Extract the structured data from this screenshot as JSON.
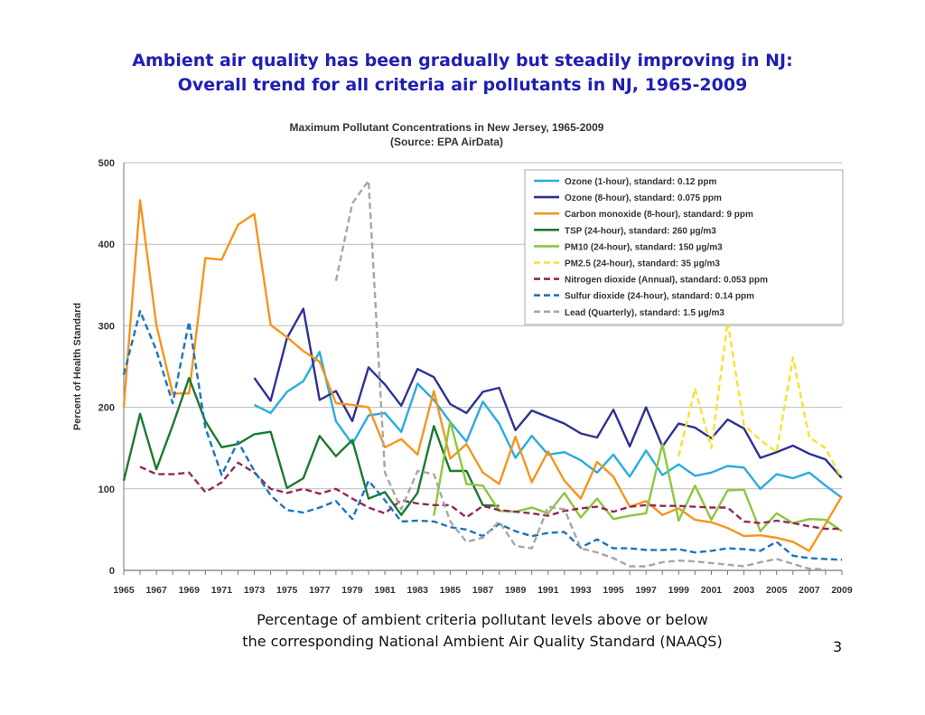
{
  "slide": {
    "title_line1": "Ambient air quality has been gradually but steadily improving in NJ:",
    "title_line2": "Overall trend for all criteria air pollutants in NJ, 1965-2009",
    "caption_line1": "Percentage of ambient criteria pollutant levels above or below",
    "caption_line2": "the corresponding National Ambient Air Quality Standard (NAAQS)",
    "page_number": "3"
  },
  "chart_data": {
    "type": "line",
    "title": "Maximum Pollutant Concentrations in New Jersey, 1965-2009",
    "subtitle": "(Source: EPA AirData)",
    "ylabel": "Percent of Health Standard",
    "xlabel": "",
    "xlim": [
      1965,
      2009
    ],
    "ylim": [
      0,
      500
    ],
    "yticks": [
      0,
      100,
      200,
      300,
      400,
      500
    ],
    "xticks": [
      1965,
      1967,
      1969,
      1971,
      1973,
      1975,
      1977,
      1979,
      1981,
      1983,
      1985,
      1987,
      1989,
      1991,
      1993,
      1995,
      1997,
      1999,
      2001,
      2003,
      2005,
      2007,
      2009
    ],
    "grid": "horizontal",
    "legend_position": "top-right",
    "series": [
      {
        "name": "Ozone (1-hour), standard: 0.12 ppm",
        "color": "#29abe2",
        "dash": "solid",
        "x": [
          1973,
          1974,
          1975,
          1976,
          1977,
          1978,
          1979,
          1980,
          1981,
          1982,
          1983,
          1984,
          1985,
          1986,
          1987,
          1988,
          1989,
          1990,
          1991,
          1992,
          1993,
          1994,
          1995,
          1996,
          1997,
          1998,
          1999,
          2000,
          2001,
          2002,
          2003,
          2004,
          2005,
          2006,
          2007,
          2008,
          2009
        ],
        "y": [
          203,
          193,
          219,
          232,
          268,
          183,
          155,
          190,
          193,
          170,
          229,
          209,
          182,
          158,
          207,
          180,
          138,
          165,
          142,
          145,
          135,
          120,
          142,
          115,
          147,
          117,
          130,
          116,
          120,
          128,
          126,
          100,
          118,
          113,
          120,
          104,
          89
        ]
      },
      {
        "name": "Ozone (8-hour), standard: 0.075 ppm",
        "color": "#2e3192",
        "dash": "solid",
        "x": [
          1973,
          1974,
          1975,
          1976,
          1977,
          1978,
          1979,
          1980,
          1981,
          1982,
          1983,
          1984,
          1985,
          1986,
          1987,
          1988,
          1989,
          1990,
          1991,
          1992,
          1993,
          1994,
          1995,
          1996,
          1997,
          1998,
          1999,
          2000,
          2001,
          2002,
          2003,
          2004,
          2005,
          2006,
          2007,
          2008,
          2009
        ],
        "y": [
          236,
          208,
          285,
          321,
          209,
          220,
          183,
          249,
          228,
          202,
          247,
          237,
          204,
          193,
          219,
          224,
          172,
          196,
          188,
          180,
          168,
          163,
          197,
          152,
          200,
          152,
          180,
          175,
          162,
          185,
          174,
          138,
          145,
          153,
          143,
          136,
          113
        ]
      },
      {
        "name": "Carbon monoxide (8-hour), standard: 9 ppm",
        "color": "#f7941d",
        "dash": "solid",
        "x": [
          1965,
          1966,
          1967,
          1968,
          1969,
          1970,
          1971,
          1972,
          1973,
          1974,
          1975,
          1976,
          1977,
          1978,
          1979,
          1980,
          1981,
          1982,
          1983,
          1984,
          1985,
          1986,
          1987,
          1988,
          1989,
          1990,
          1991,
          1992,
          1993,
          1994,
          1995,
          1996,
          1997,
          1998,
          1999,
          2000,
          2001,
          2002,
          2003,
          2004,
          2005,
          2006,
          2007,
          2008,
          2009
        ],
        "y": [
          200,
          454,
          301,
          217,
          217,
          383,
          381,
          424,
          437,
          301,
          286,
          269,
          256,
          205,
          203,
          200,
          151,
          161,
          142,
          220,
          137,
          155,
          120,
          106,
          164,
          108,
          146,
          110,
          88,
          133,
          115,
          78,
          85,
          68,
          76,
          62,
          59,
          52,
          42,
          43,
          40,
          35,
          24,
          57,
          91
        ]
      },
      {
        "name": "TSP (24-hour), standard: 260 µg/m3",
        "color": "#1a7a2e",
        "dash": "solid",
        "x": [
          1965,
          1966,
          1967,
          1968,
          1969,
          1970,
          1971,
          1972,
          1973,
          1974,
          1975,
          1976,
          1977,
          1978,
          1979,
          1980,
          1981,
          1982,
          1983,
          1984,
          1985,
          1986,
          1987,
          1988
        ],
        "y": [
          110,
          192,
          124,
          178,
          236,
          183,
          151,
          155,
          167,
          170,
          101,
          113,
          165,
          140,
          160,
          88,
          96,
          68,
          95,
          177,
          122,
          122,
          80,
          79
        ]
      },
      {
        "name": "PM10 (24-hour), standard: 150 µg/m3",
        "color": "#8dc63f",
        "dash": "solid",
        "x": [
          1984,
          1985,
          1986,
          1987,
          1988,
          1989,
          1990,
          1991,
          1992,
          1993,
          1994,
          1995,
          1996,
          1997,
          1998,
          1999,
          2000,
          2001,
          2002,
          2003,
          2004,
          2005,
          2006,
          2007,
          2008,
          2009
        ],
        "y": [
          67,
          183,
          106,
          104,
          73,
          72,
          77,
          70,
          95,
          65,
          88,
          63,
          67,
          70,
          155,
          61,
          104,
          62,
          98,
          99,
          48,
          70,
          58,
          63,
          62,
          48
        ]
      },
      {
        "name": "PM2.5 (24-hour), standard: 35 µg/m3",
        "color": "#f9e030",
        "dash": "dashed",
        "x": [
          1999,
          2000,
          2001,
          2002,
          2003,
          2004,
          2005,
          2006,
          2007,
          2008,
          2009
        ],
        "y": [
          140,
          223,
          150,
          305,
          178,
          160,
          145,
          261,
          163,
          150,
          112
        ]
      },
      {
        "name": "Nitrogen dioxide (Annual), standard: 0.053 ppm",
        "color": "#93275a",
        "dash": "dashed",
        "x": [
          1966,
          1967,
          1968,
          1969,
          1970,
          1971,
          1972,
          1973,
          1974,
          1975,
          1976,
          1977,
          1978,
          1979,
          1980,
          1981,
          1982,
          1983,
          1984,
          1985,
          1986,
          1987,
          1988,
          1989,
          1990,
          1991,
          1992,
          1993,
          1994,
          1995,
          1996,
          1997,
          1998,
          1999,
          2000,
          2001,
          2002,
          2003,
          2004,
          2005,
          2006,
          2007,
          2008,
          2009
        ],
        "y": [
          127,
          118,
          118,
          120,
          96,
          108,
          132,
          120,
          100,
          95,
          100,
          94,
          100,
          88,
          77,
          70,
          86,
          82,
          80,
          80,
          65,
          79,
          74,
          72,
          70,
          67,
          73,
          76,
          78,
          72,
          78,
          80,
          79,
          79,
          78,
          77,
          77,
          60,
          58,
          61,
          58,
          54,
          51,
          51
        ]
      },
      {
        "name": "Sulfur dioxide (24-hour), standard: 0.14 ppm",
        "color": "#1b75bb",
        "dash": "dashed",
        "x": [
          1965,
          1966,
          1967,
          1968,
          1969,
          1970,
          1971,
          1972,
          1973,
          1974,
          1975,
          1976,
          1977,
          1978,
          1979,
          1980,
          1981,
          1982,
          1983,
          1984,
          1985,
          1986,
          1987,
          1988,
          1989,
          1990,
          1991,
          1992,
          1993,
          1994,
          1995,
          1996,
          1997,
          1998,
          1999,
          2000,
          2001,
          2002,
          2003,
          2004,
          2005,
          2006,
          2007,
          2008,
          2009
        ],
        "y": [
          240,
          318,
          270,
          205,
          305,
          175,
          117,
          158,
          122,
          92,
          74,
          71,
          77,
          85,
          63,
          110,
          86,
          60,
          61,
          60,
          53,
          50,
          42,
          57,
          48,
          42,
          46,
          47,
          28,
          38,
          27,
          27,
          25,
          25,
          26,
          22,
          24,
          27,
          26,
          24,
          35,
          18,
          15,
          14,
          13
        ]
      },
      {
        "name": "Lead (Quarterly), standard: 1.5 µg/m3",
        "color": "#a6a6a6",
        "dash": "dashed",
        "x": [
          1978,
          1979,
          1980,
          1981,
          1982,
          1983,
          1984,
          1985,
          1986,
          1987,
          1988,
          1989,
          1990,
          1991,
          1992,
          1993,
          1994,
          1995,
          1996,
          1997,
          1998,
          1999,
          2000,
          2001,
          2002,
          2003,
          2004,
          2005,
          2006,
          2007,
          2008
        ],
        "y": [
          355,
          450,
          478,
          120,
          75,
          122,
          118,
          60,
          35,
          40,
          60,
          30,
          27,
          78,
          75,
          27,
          22,
          15,
          5,
          5,
          10,
          12,
          11,
          9,
          7,
          5,
          10,
          14,
          8,
          2,
          1
        ]
      }
    ]
  }
}
